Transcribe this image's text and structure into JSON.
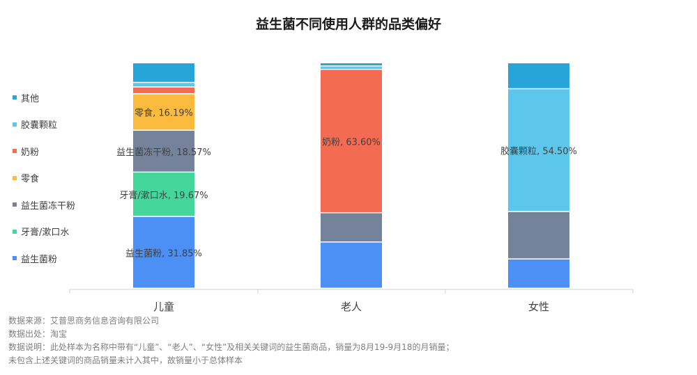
{
  "chart_data": {
    "type": "bar",
    "stacked": true,
    "title": "益生菌不同使用人群的品类偏好",
    "categories": [
      "儿童",
      "老人",
      "女性"
    ],
    "ylim": [
      0,
      100
    ],
    "grid": false,
    "legend_position": "left",
    "series": [
      {
        "name": "益生菌粉",
        "color": "#4c8ff5",
        "values": [
          31.85,
          20.5,
          13.0
        ]
      },
      {
        "name": "牙膏/漱口水",
        "color": "#44d69b",
        "values": [
          19.67,
          0,
          0
        ]
      },
      {
        "name": "益生菌冻干粉",
        "color": "#75839a",
        "values": [
          18.57,
          13.0,
          21.0
        ]
      },
      {
        "name": "零食",
        "color": "#fbbb3f",
        "values": [
          16.19,
          0,
          0
        ]
      },
      {
        "name": "奶粉",
        "color": "#f26b52",
        "values": [
          3.0,
          63.6,
          0
        ]
      },
      {
        "name": "胶囊颗粒",
        "color": "#5cc6eb",
        "values": [
          2.0,
          1.5,
          54.5
        ]
      },
      {
        "name": "其他",
        "color": "#27a5d8",
        "values": [
          8.72,
          1.4,
          11.5
        ]
      }
    ],
    "data_labels": [
      {
        "text": "益生菌粉, 31.85%",
        "category": 0,
        "series": 0
      },
      {
        "text": "牙膏/漱口水, 19.67%",
        "category": 0,
        "series": 1
      },
      {
        "text": "益生菌冻干粉, 18.57%",
        "category": 0,
        "series": 2
      },
      {
        "text": "零食, 16.19%",
        "category": 0,
        "series": 3
      },
      {
        "text": "奶粉, 63.60%",
        "category": 1,
        "series": 4
      },
      {
        "text": "胶囊颗粒, 54.50%",
        "category": 2,
        "series": 5
      }
    ],
    "legend_order": [
      "其他",
      "胶囊颗粒",
      "奶粉",
      "零食",
      "益生菌冻干粉",
      "牙膏/漱口水",
      "益生菌粉"
    ]
  },
  "footer": {
    "source": "数据来源：艾普思商务信息咨询有限公司",
    "origin": "数据出处：淘宝",
    "note1": "数据说明：此处样本为名称中带有“儿童”、“老人”、“女性”及相关关键词的益生菌商品，销量为8月19-9月18的月销量；",
    "note2": "未包含上述关键词的商品销量未计入其中，故销量小于总体样本"
  }
}
